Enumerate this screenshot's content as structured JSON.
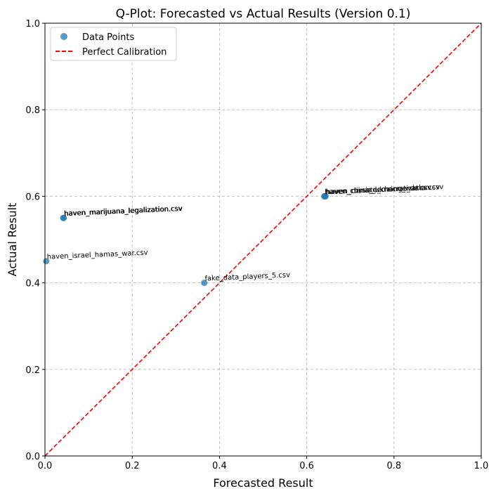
{
  "chart_data": {
    "type": "scatter",
    "title": "Q-Plot: Forecasted vs Actual Results (Version 0.1)",
    "xlabel": "Forecasted Result",
    "ylabel": "Actual Result",
    "xlim": [
      0,
      1
    ],
    "ylim": [
      0,
      1
    ],
    "xticks": [
      "0.0",
      "0.2",
      "0.4",
      "0.6",
      "0.8",
      "1.0"
    ],
    "yticks": [
      "0.0",
      "0.2",
      "0.4",
      "0.6",
      "0.8",
      "1.0"
    ],
    "grid": true,
    "legend_position": "top-left",
    "legend": [
      "Data Points",
      "Perfect Calibration"
    ],
    "point_color": "#1f77b4",
    "line_color": "#ff0000",
    "reference_line": {
      "name": "Perfect Calibration",
      "x": [
        0,
        1
      ],
      "y": [
        0,
        1
      ]
    },
    "points": [
      {
        "x": 0.042,
        "y": 0.55,
        "label": "haven_marijuana_legalization.csv"
      },
      {
        "x": 0.043,
        "y": 0.55,
        "label": "haven_marijuana_legalization.csv"
      },
      {
        "x": 0.003,
        "y": 0.45,
        "label": "haven_israel_hamas_war.csv"
      },
      {
        "x": 0.365,
        "y": 0.4,
        "label": "fake_data_players_5.csv"
      },
      {
        "x": 0.64,
        "y": 0.6,
        "label": "haven_china_democratization.csv"
      },
      {
        "x": 0.642,
        "y": 0.6,
        "label": "haven_russia_ukraine_war.csv"
      },
      {
        "x": 0.643,
        "y": 0.6,
        "label": "haven_climate_change_data.csv"
      }
    ]
  }
}
